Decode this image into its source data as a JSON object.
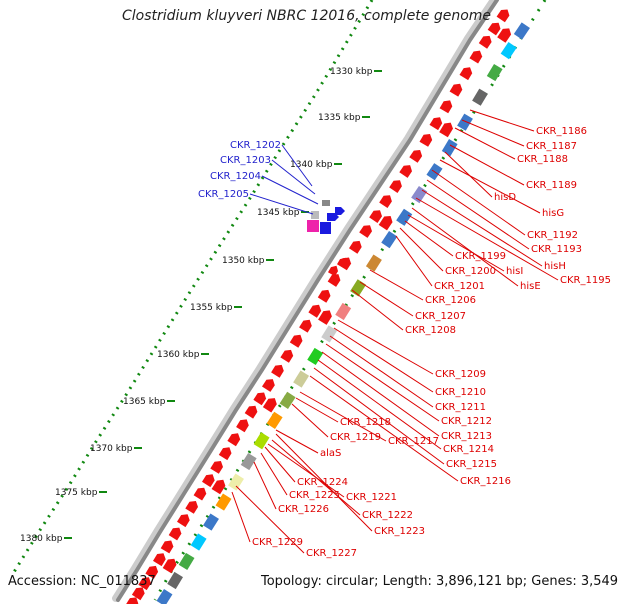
{
  "title": "Clostridium kluyveri NBRC 12016, complete genome",
  "footer": {
    "accession": "Accession: NC_011837",
    "topology": "Topology: circular; Length: 3,896,121 bp; Genes: 3,549"
  },
  "colors": {
    "forward": "#ee1111",
    "reverse_blue": "#1a1adf",
    "label_red": "#dd0000",
    "label_blue": "#2222cc",
    "tick_green": "#118811",
    "backbone": "#888888"
  },
  "scale": {
    "ticks": [
      {
        "label": "1330 kbp"
      },
      {
        "label": "1335 kbp"
      },
      {
        "label": "1340 kbp"
      },
      {
        "label": "1345 kbp"
      },
      {
        "label": "1350 kbp"
      },
      {
        "label": "1355 kbp"
      },
      {
        "label": "1360 kbp"
      },
      {
        "label": "1365 kbp"
      },
      {
        "label": "1370 kbp"
      },
      {
        "label": "1375 kbp"
      },
      {
        "label": "1380 kbp"
      }
    ]
  },
  "blue_labels": [
    {
      "text": "CKR_1202"
    },
    {
      "text": "CKR_1203"
    },
    {
      "text": "CKR_1204"
    },
    {
      "text": "CKR_1205"
    }
  ],
  "red_labels": [
    {
      "text": "CKR_1186"
    },
    {
      "text": "CKR_1187"
    },
    {
      "text": "CKR_1188"
    },
    {
      "text": "CKR_1189"
    },
    {
      "text": "hisD"
    },
    {
      "text": "hisG"
    },
    {
      "text": "CKR_1192"
    },
    {
      "text": "CKR_1193"
    },
    {
      "text": "hisH"
    },
    {
      "text": "CKR_1195"
    },
    {
      "text": "hisE"
    },
    {
      "text": "hisI"
    },
    {
      "text": "CKR_1199"
    },
    {
      "text": "CKR_1200"
    },
    {
      "text": "CKR_1201"
    },
    {
      "text": "CKR_1206"
    },
    {
      "text": "CKR_1207"
    },
    {
      "text": "CKR_1208"
    },
    {
      "text": "CKR_1209"
    },
    {
      "text": "CKR_1210"
    },
    {
      "text": "CKR_1211"
    },
    {
      "text": "CKR_1212"
    },
    {
      "text": "CKR_1213"
    },
    {
      "text": "CKR_1214"
    },
    {
      "text": "CKR_1215"
    },
    {
      "text": "CKR_1216"
    },
    {
      "text": "CKR_1217"
    },
    {
      "text": "CKR_1218"
    },
    {
      "text": "CKR_1219"
    },
    {
      "text": "alaS"
    },
    {
      "text": "CKR_1224"
    },
    {
      "text": "CKR_1225"
    },
    {
      "text": "CKR_1221"
    },
    {
      "text": "CKR_1226"
    },
    {
      "text": "CKR_1222"
    },
    {
      "text": "CKR_1223"
    },
    {
      "text": "CKR_1229"
    },
    {
      "text": "CKR_1227"
    }
  ]
}
